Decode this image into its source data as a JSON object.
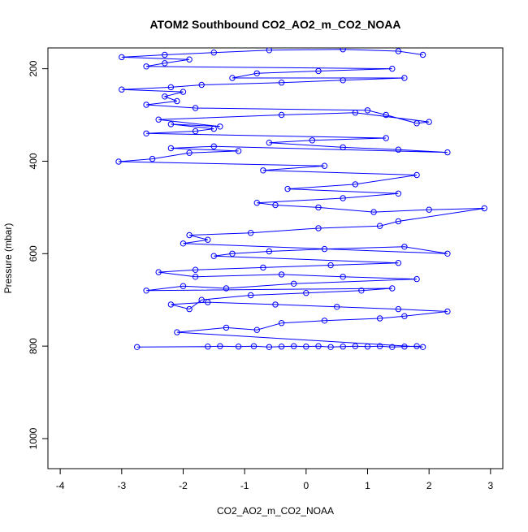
{
  "chart_data": {
    "type": "scatter",
    "title": "ATOM2 Southbound CO2_AO2_m_CO2_NOAA",
    "xlabel": "CO2_AO2_m_CO2_NOAA",
    "ylabel": "Pressure (mbar)",
    "xlim": [
      -4.2,
      3.2
    ],
    "ylim": [
      1065,
      155
    ],
    "y_inverted": true,
    "x_ticks": [
      -4,
      -3,
      -2,
      -1,
      0,
      1,
      2,
      3
    ],
    "x_tick_labels": [
      "-4",
      "-3",
      "-2",
      "-1",
      "0",
      "1",
      "2",
      "3"
    ],
    "y_ticks": [
      200,
      400,
      600,
      800,
      1000
    ],
    "y_tick_labels": [
      "200",
      "400",
      "600",
      "800",
      "1000"
    ],
    "grid": false,
    "legend": "none",
    "color": "#0000ff",
    "marker": "open-circle",
    "connected_lines": true,
    "series": [
      {
        "points": [
          [
            -2.75,
            802
          ],
          [
            -1.6,
            801
          ],
          [
            -1.4,
            800
          ],
          [
            -1.1,
            801
          ],
          [
            -0.85,
            800
          ],
          [
            -0.6,
            802
          ],
          [
            -0.4,
            801
          ],
          [
            -0.2,
            800
          ],
          [
            0.0,
            801
          ],
          [
            0.2,
            800
          ],
          [
            0.4,
            802
          ],
          [
            0.6,
            801
          ],
          [
            0.8,
            800
          ],
          [
            1.0,
            801
          ],
          [
            1.2,
            800
          ],
          [
            1.4,
            802
          ],
          [
            1.6,
            801
          ],
          [
            1.8,
            800
          ],
          [
            1.9,
            802
          ],
          [
            -2.1,
            770
          ],
          [
            -1.3,
            760
          ],
          [
            -0.8,
            765
          ],
          [
            -0.4,
            750
          ],
          [
            0.3,
            745
          ],
          [
            1.2,
            740
          ],
          [
            1.6,
            735
          ],
          [
            2.3,
            725
          ],
          [
            1.5,
            720
          ],
          [
            0.5,
            715
          ],
          [
            -0.5,
            710
          ],
          [
            -1.6,
            705
          ],
          [
            -2.2,
            710
          ],
          [
            -1.9,
            720
          ],
          [
            -1.7,
            700
          ],
          [
            -0.9,
            690
          ],
          [
            0.0,
            685
          ],
          [
            0.9,
            680
          ],
          [
            1.4,
            675
          ],
          [
            -2.6,
            680
          ],
          [
            -2.0,
            670
          ],
          [
            -1.3,
            675
          ],
          [
            -0.2,
            665
          ],
          [
            1.8,
            655
          ],
          [
            0.6,
            650
          ],
          [
            -0.4,
            645
          ],
          [
            -1.8,
            650
          ],
          [
            -2.4,
            640
          ],
          [
            -1.8,
            635
          ],
          [
            -0.7,
            630
          ],
          [
            0.4,
            625
          ],
          [
            1.5,
            620
          ],
          [
            -1.5,
            605
          ],
          [
            -1.2,
            600
          ],
          [
            -0.6,
            595
          ],
          [
            0.3,
            590
          ],
          [
            1.6,
            585
          ],
          [
            2.3,
            600
          ],
          [
            -2.0,
            578
          ],
          [
            -1.6,
            570
          ],
          [
            -1.9,
            560
          ],
          [
            -0.9,
            555
          ],
          [
            0.2,
            545
          ],
          [
            1.2,
            540
          ],
          [
            1.5,
            530
          ],
          [
            2.9,
            502
          ],
          [
            2.0,
            505
          ],
          [
            1.1,
            510
          ],
          [
            0.2,
            500
          ],
          [
            -0.5,
            495
          ],
          [
            -0.8,
            490
          ],
          [
            0.6,
            480
          ],
          [
            1.5,
            470
          ],
          [
            -0.3,
            460
          ],
          [
            0.8,
            450
          ],
          [
            1.8,
            430
          ],
          [
            -0.7,
            420
          ],
          [
            0.3,
            410
          ],
          [
            -3.05,
            401
          ],
          [
            -2.5,
            395
          ],
          [
            -1.9,
            382
          ],
          [
            -1.1,
            378
          ],
          [
            -2.2,
            372
          ],
          [
            -1.5,
            368
          ],
          [
            2.3,
            381
          ],
          [
            1.5,
            375
          ],
          [
            0.6,
            370
          ],
          [
            -0.6,
            360
          ],
          [
            0.1,
            355
          ],
          [
            1.3,
            350
          ],
          [
            -2.6,
            340
          ],
          [
            -1.8,
            335
          ],
          [
            -1.5,
            330
          ],
          [
            -2.2,
            320
          ],
          [
            -1.4,
            325
          ],
          [
            -2.4,
            310
          ],
          [
            -0.4,
            300
          ],
          [
            0.8,
            295
          ],
          [
            2.0,
            315
          ],
          [
            1.8,
            318
          ],
          [
            1.3,
            300
          ],
          [
            1.0,
            290
          ],
          [
            -1.8,
            285
          ],
          [
            -2.6,
            278
          ],
          [
            -2.1,
            270
          ],
          [
            -2.3,
            260
          ],
          [
            -2.0,
            250
          ],
          [
            -3.0,
            245
          ],
          [
            -2.2,
            240
          ],
          [
            -1.7,
            235
          ],
          [
            -0.4,
            230
          ],
          [
            0.6,
            225
          ],
          [
            1.6,
            220
          ],
          [
            -1.2,
            220
          ],
          [
            -0.8,
            210
          ],
          [
            0.2,
            205
          ],
          [
            1.4,
            200
          ],
          [
            -2.6,
            195
          ],
          [
            -2.3,
            188
          ],
          [
            -1.9,
            180
          ],
          [
            -3.0,
            175
          ],
          [
            -2.3,
            170
          ],
          [
            -1.5,
            165
          ],
          [
            -0.6,
            160
          ],
          [
            0.6,
            158
          ],
          [
            1.5,
            162
          ],
          [
            1.9,
            170
          ]
        ]
      }
    ]
  }
}
